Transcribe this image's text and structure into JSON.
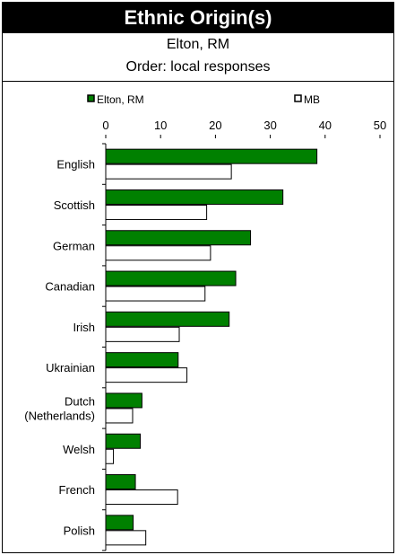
{
  "title": "Ethnic Origin(s)",
  "subtitle_place": "Elton, RM",
  "subtitle_order": "Order: local responses",
  "chart_data": {
    "type": "bar",
    "orientation": "horizontal",
    "categories": [
      "English",
      "Scottish",
      "German",
      "Canadian",
      "Irish",
      "Ukrainian",
      "Dutch (Netherlands)",
      "Welsh",
      "French",
      "Polish"
    ],
    "category_lines": [
      [
        "English"
      ],
      [
        "Scottish"
      ],
      [
        "German"
      ],
      [
        "Canadian"
      ],
      [
        "Irish"
      ],
      [
        "Ukrainian"
      ],
      [
        "Dutch",
        "(Netherlands)"
      ],
      [
        "Welsh"
      ],
      [
        "French"
      ],
      [
        "Polish"
      ]
    ],
    "series": [
      {
        "name": "Elton, RM",
        "color": "#008000",
        "values": [
          38.5,
          32.3,
          26.4,
          23.7,
          22.5,
          13.2,
          6.6,
          6.3,
          5.4,
          5.0
        ]
      },
      {
        "name": "MB",
        "color": "#ffffff",
        "values": [
          22.9,
          18.4,
          19.1,
          18.1,
          13.4,
          14.8,
          4.9,
          1.4,
          13.1,
          7.3
        ]
      }
    ],
    "xlim": [
      0,
      50
    ],
    "xticks": [
      "0",
      "10",
      "20",
      "30",
      "40",
      "50"
    ],
    "legend_position": "top"
  }
}
